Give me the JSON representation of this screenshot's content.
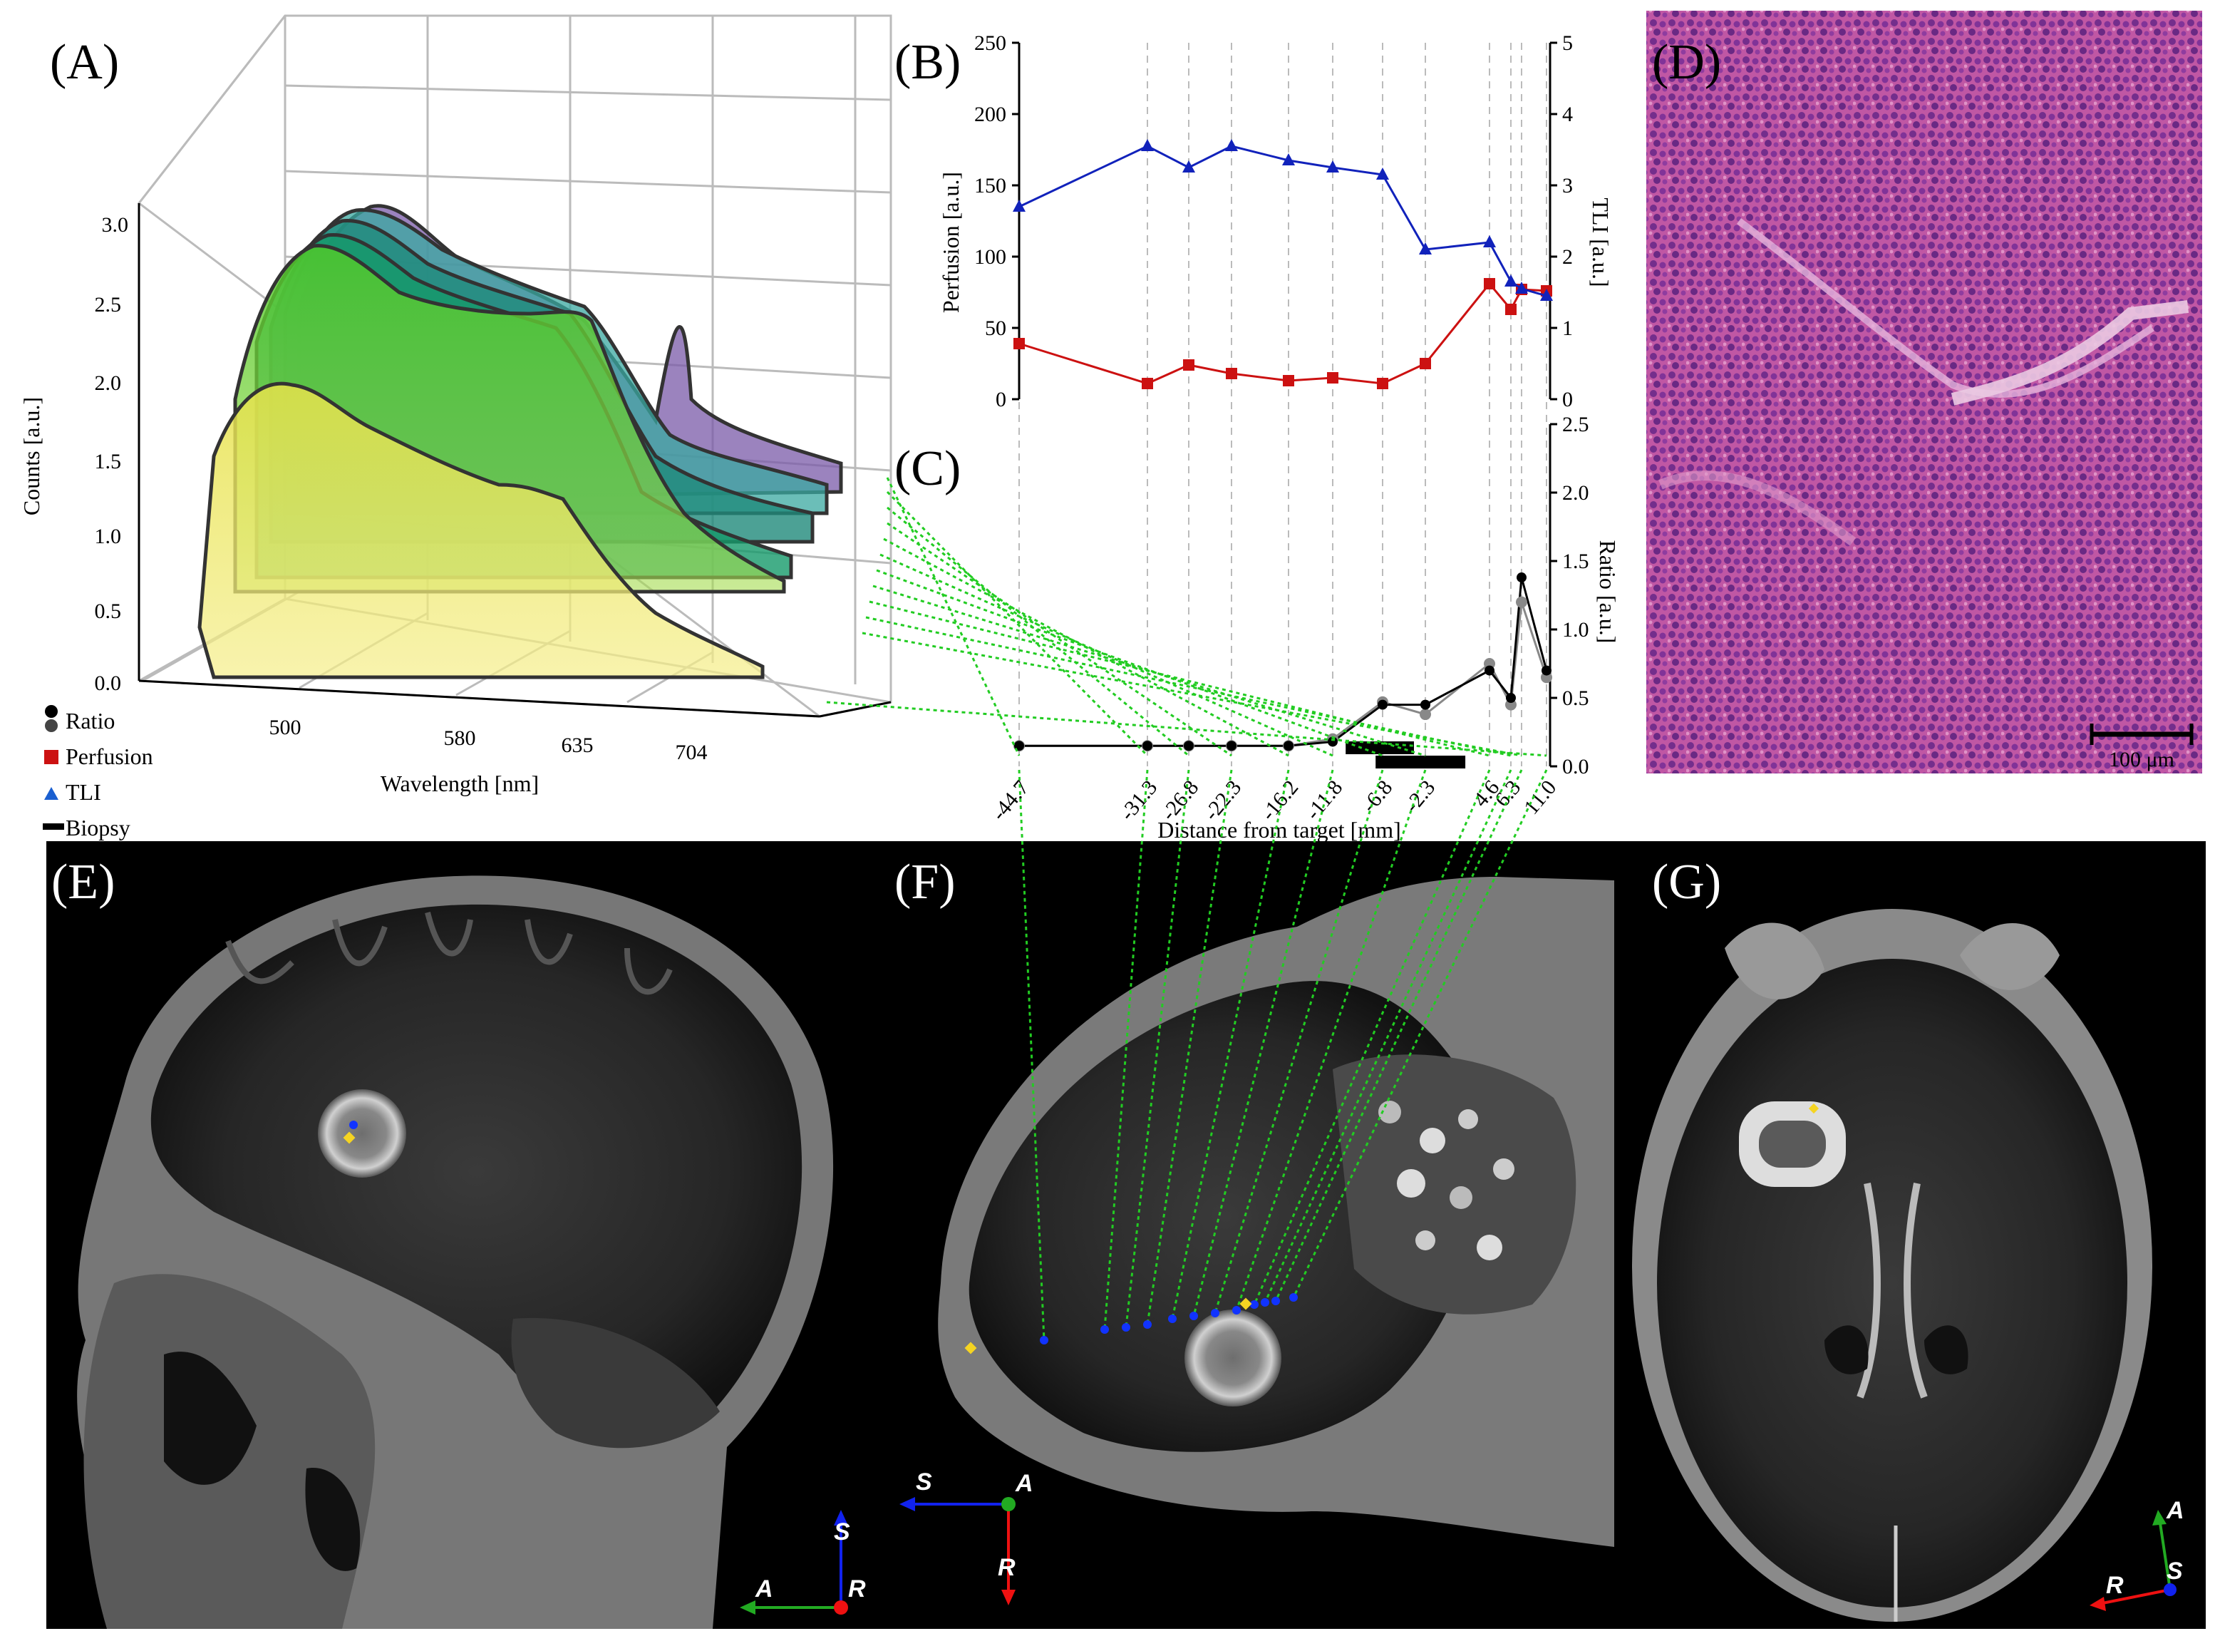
{
  "panel_labels": {
    "a": "(A)",
    "b": "(B)",
    "c": "(C)",
    "d": "(D)",
    "e": "(E)",
    "f": "(F)",
    "g": "(G)"
  },
  "colors": {
    "perfusion": "#cc1111",
    "tli": "#1122bb",
    "ratio": "#000000",
    "ratio_alt": "#888888",
    "links": "#22cc22",
    "marker_yellow": "#f5d422",
    "marker_blue": "#1133ff"
  },
  "legend": {
    "ratio": "Ratio",
    "perfusion": "Perfusion",
    "tli": "TLI",
    "biopsy": "Biopsy"
  },
  "scalebar": {
    "label": "100 μm"
  },
  "orientation": {
    "e": {
      "up": "S",
      "left": "A",
      "origin": "R"
    },
    "f": {
      "left": "S",
      "origin": "A",
      "down": "R"
    },
    "g": {
      "up": "A",
      "left": "R",
      "origin": "S"
    }
  },
  "chart_data": [
    {
      "panel": "A",
      "type": "area",
      "xlabel": "Wavelength [nm]",
      "ylabel": "Counts [a.u.]",
      "x_ticks": [
        "500",
        "580",
        "635",
        "704"
      ],
      "y_ticks": [
        "0.0",
        "0.5",
        "1.0",
        "1.5",
        "2.0",
        "2.5",
        "3.0"
      ],
      "grid": true
    },
    {
      "panel": "B",
      "type": "line",
      "ylabel": "Perfusion [a.u.]",
      "y2label": "TLI [a.u.]",
      "ylim": [
        0,
        250
      ],
      "y2lim": [
        0,
        5
      ],
      "y_ticks": [
        "0",
        "50",
        "100",
        "150",
        "200",
        "250"
      ],
      "y2_ticks": [
        "0",
        "1",
        "2",
        "3",
        "4",
        "5"
      ],
      "x": [
        -44.7,
        -31.3,
        -26.8,
        -22.3,
        -16.2,
        -11.8,
        -6.8,
        -2.3,
        4.6,
        6.3,
        7.3,
        11.0
      ],
      "series": [
        {
          "name": "Perfusion",
          "axis": "left",
          "values": [
            39,
            11,
            24,
            18,
            13,
            15,
            11,
            25,
            81,
            63,
            77,
            76
          ]
        },
        {
          "name": "TLI",
          "axis": "right",
          "values": [
            2.7,
            3.55,
            3.25,
            3.55,
            3.35,
            3.25,
            3.15,
            2.1,
            2.2,
            1.65,
            1.55,
            1.45
          ]
        }
      ]
    },
    {
      "panel": "C",
      "type": "line",
      "xlabel": "Distance from target [mm]",
      "y2label": "Ratio [a.u.]",
      "y2lim": [
        0,
        2.5
      ],
      "y2_ticks": [
        "0.0",
        "0.5",
        "1.0",
        "1.5",
        "2.0",
        "2.5"
      ],
      "x": [
        -44.7,
        -31.3,
        -26.8,
        -22.3,
        -16.2,
        -11.8,
        -6.8,
        -2.3,
        4.6,
        6.3,
        7.3,
        11.0
      ],
      "x_ticks": [
        "-44.7",
        "-31.3",
        "-26.8",
        "-22.3",
        "-16.2",
        "-11.8",
        "-6.8",
        "-2.3",
        "4.6",
        "6.3",
        "11.0"
      ],
      "series": [
        {
          "name": "Ratio",
          "values": [
            0.15,
            0.15,
            0.15,
            0.15,
            0.15,
            0.18,
            0.45,
            0.45,
            0.7,
            0.5,
            1.38,
            0.7
          ]
        },
        {
          "name": "Ratio",
          "values": [
            0.15,
            0.15,
            0.15,
            0.15,
            0.15,
            0.2,
            0.47,
            0.38,
            0.75,
            0.45,
            1.2,
            0.65
          ]
        }
      ],
      "biopsy_ranges": [
        [
          -10.5,
          -3.5
        ],
        [
          -7.5,
          2.0
        ]
      ]
    }
  ]
}
